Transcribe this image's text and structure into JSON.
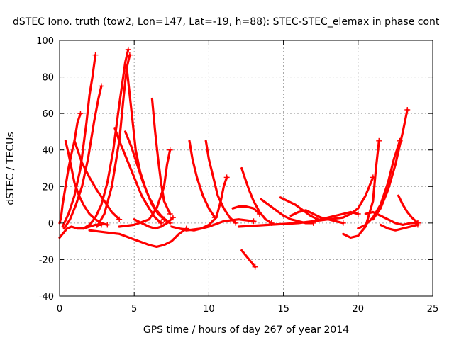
{
  "chart_data": {
    "type": "line",
    "title": "dSTEC Iono. truth (tow2, Lon=147, Lat=-19, h=88): STEC-STEC_elemax in phase cont",
    "xlabel": "GPS time / hours of day 267 of year 2014",
    "ylabel": "dSTEC  / TECUs",
    "xlim": [
      0,
      25
    ],
    "ylim": [
      -40,
      100
    ],
    "xticks": [
      0,
      5,
      10,
      15,
      20,
      25
    ],
    "yticks": [
      -40,
      -20,
      0,
      20,
      40,
      60,
      80,
      100
    ],
    "grid": true,
    "marker": "plus",
    "color": "#ff0000",
    "series": [
      {
        "x": [
          0.0,
          0.1,
          0.3,
          0.5,
          0.8,
          1.2,
          1.6,
          2.0,
          2.4,
          2.8
        ],
        "y": [
          -8,
          -7,
          -5,
          -3,
          -2,
          -3,
          -3,
          -2,
          -1,
          -1
        ]
      },
      {
        "x": [
          0.0,
          0.1,
          0.2,
          0.4,
          0.6,
          0.8,
          1.0,
          1.2,
          1.4
        ],
        "y": [
          0,
          3,
          10,
          20,
          30,
          38,
          45,
          55,
          60
        ]
      },
      {
        "x": [
          0.4,
          0.6,
          0.8,
          1.0,
          1.3,
          1.6,
          2.0,
          2.4,
          2.8,
          3.2
        ],
        "y": [
          45,
          38,
          30,
          22,
          15,
          10,
          5,
          2,
          0,
          -1
        ]
      },
      {
        "x": [
          0.2,
          0.6,
          1.0,
          1.4,
          1.8,
          2.0,
          2.2,
          2.4
        ],
        "y": [
          -2,
          5,
          15,
          30,
          55,
          70,
          80,
          92
        ]
      },
      {
        "x": [
          0.3,
          0.7,
          1.1,
          1.5,
          1.9,
          2.3,
          2.6,
          2.8
        ],
        "y": [
          -3,
          2,
          10,
          20,
          35,
          55,
          68,
          75
        ]
      },
      {
        "x": [
          1.0,
          1.5,
          2.0,
          2.5,
          3.0,
          3.5,
          4.0
        ],
        "y": [
          45,
          33,
          25,
          18,
          12,
          6,
          2
        ]
      },
      {
        "x": [
          1.6,
          2.0,
          2.4,
          2.8,
          3.2,
          3.6,
          4.0,
          4.4,
          4.6
        ],
        "y": [
          -3,
          -1,
          3,
          10,
          22,
          40,
          65,
          88,
          95
        ]
      },
      {
        "x": [
          2.5,
          3.0,
          3.5,
          4.0,
          4.3,
          4.5,
          4.7
        ],
        "y": [
          -2,
          5,
          20,
          45,
          70,
          85,
          92
        ]
      },
      {
        "x": [
          3.7,
          4.0,
          4.5,
          5.0,
          5.5,
          6.0,
          6.4,
          6.8
        ],
        "y": [
          52,
          45,
          35,
          25,
          15,
          8,
          3,
          0
        ]
      },
      {
        "x": [
          4.5,
          4.7,
          4.9,
          5.1,
          5.4,
          5.8,
          6.2,
          6.6,
          7.0
        ],
        "y": [
          85,
          70,
          55,
          40,
          28,
          18,
          10,
          5,
          2
        ]
      },
      {
        "x": [
          4.4,
          4.8,
          5.2,
          5.6,
          6.0,
          6.4,
          6.8,
          7.2,
          7.4
        ],
        "y": [
          50,
          42,
          32,
          22,
          14,
          8,
          4,
          1,
          0
        ]
      },
      {
        "x": [
          2.0,
          3.0,
          4.0,
          5.0,
          6.0,
          6.5,
          7.0,
          7.5,
          8.0,
          8.5
        ],
        "y": [
          -4,
          -5,
          -6,
          -9,
          -12,
          -13,
          -12,
          -10,
          -6,
          -3
        ]
      },
      {
        "x": [
          6.2,
          6.4,
          6.6,
          6.8,
          7.0,
          7.4
        ],
        "y": [
          68,
          50,
          35,
          22,
          12,
          5
        ]
      },
      {
        "x": [
          4.0,
          5.0,
          6.0,
          6.5,
          7.0,
          7.2,
          7.4
        ],
        "y": [
          -2,
          -1,
          2,
          8,
          20,
          32,
          40
        ]
      },
      {
        "x": [
          5.0,
          5.5,
          6.0,
          6.4,
          6.8,
          7.2,
          7.6
        ],
        "y": [
          2,
          0,
          -2,
          -3,
          -2,
          0,
          3
        ]
      },
      {
        "x": [
          8.7,
          8.9,
          9.2,
          9.6,
          10.0,
          10.4
        ],
        "y": [
          45,
          35,
          25,
          15,
          8,
          3
        ]
      },
      {
        "x": [
          9.8,
          10.0,
          10.3,
          10.6,
          11.0,
          11.4,
          11.8
        ],
        "y": [
          45,
          35,
          25,
          15,
          8,
          3,
          0
        ]
      },
      {
        "x": [
          7.5,
          8.5,
          9.5,
          10.0,
          10.5,
          10.8,
          11.0,
          11.2
        ],
        "y": [
          -2,
          -4,
          -3,
          -1,
          3,
          12,
          20,
          25
        ]
      },
      {
        "x": [
          8.0,
          9.0,
          10.0,
          11.0,
          12.0,
          13.0
        ],
        "y": [
          -3,
          -4,
          -2,
          1,
          2,
          1
        ]
      },
      {
        "x": [
          12.2,
          12.4,
          12.7,
          13.0,
          13.4,
          13.8,
          14.2
        ],
        "y": [
          30,
          25,
          18,
          12,
          6,
          2,
          0
        ]
      },
      {
        "x": [
          11.6,
          12.0,
          12.5,
          13.0,
          13.4
        ],
        "y": [
          8,
          9,
          9,
          8,
          5
        ]
      },
      {
        "x": [
          12.2,
          12.5,
          12.8,
          13.1
        ],
        "y": [
          -15,
          -18,
          -21,
          -24
        ]
      },
      {
        "x": [
          13.5,
          14.0,
          14.5,
          15.0,
          15.5,
          16.0,
          16.5,
          17.0
        ],
        "y": [
          13,
          10,
          7,
          4,
          2,
          1,
          0,
          0
        ]
      },
      {
        "x": [
          14.8,
          15.3,
          15.8,
          16.3,
          16.8,
          17.3
        ],
        "y": [
          14,
          12,
          10,
          7,
          4,
          2
        ]
      },
      {
        "x": [
          15.5,
          16.0,
          16.5,
          17.0,
          17.5,
          18.0,
          18.5,
          19.0
        ],
        "y": [
          4,
          6,
          7,
          5,
          3,
          2,
          1,
          0
        ]
      },
      {
        "x": [
          16.5,
          17.0,
          17.5,
          18.0,
          18.5,
          19.0,
          19.5,
          20.0
        ],
        "y": [
          0,
          1,
          2,
          3,
          4,
          5,
          6,
          5
        ]
      },
      {
        "x": [
          12.0,
          14.0,
          16.0,
          18.0,
          19.0,
          19.5,
          20.0,
          20.5,
          21.0
        ],
        "y": [
          -2,
          -1,
          0,
          2,
          3,
          5,
          8,
          15,
          25
        ]
      },
      {
        "x": [
          19.0,
          19.5,
          20.0,
          20.5,
          21.0,
          21.2,
          21.4
        ],
        "y": [
          -6,
          -8,
          -7,
          -2,
          12,
          30,
          45
        ]
      },
      {
        "x": [
          20.0,
          20.5,
          21.0,
          21.5,
          22.0,
          22.4,
          22.8
        ],
        "y": [
          -3,
          -1,
          3,
          10,
          22,
          35,
          45
        ]
      },
      {
        "x": [
          21.0,
          21.5,
          22.0,
          22.5,
          23.0,
          23.3
        ],
        "y": [
          2,
          8,
          18,
          32,
          50,
          62
        ]
      },
      {
        "x": [
          20.5,
          21.0,
          21.5,
          22.0,
          22.5,
          23.0,
          23.5,
          24.0
        ],
        "y": [
          5,
          6,
          4,
          2,
          0,
          -1,
          0,
          0
        ]
      },
      {
        "x": [
          22.7,
          23.0,
          23.3,
          23.6,
          24.0
        ],
        "y": [
          15,
          10,
          6,
          3,
          0
        ]
      },
      {
        "x": [
          21.5,
          22.0,
          22.5,
          23.0,
          23.5,
          24.0
        ],
        "y": [
          -1,
          -3,
          -4,
          -3,
          -2,
          -1
        ]
      }
    ]
  }
}
